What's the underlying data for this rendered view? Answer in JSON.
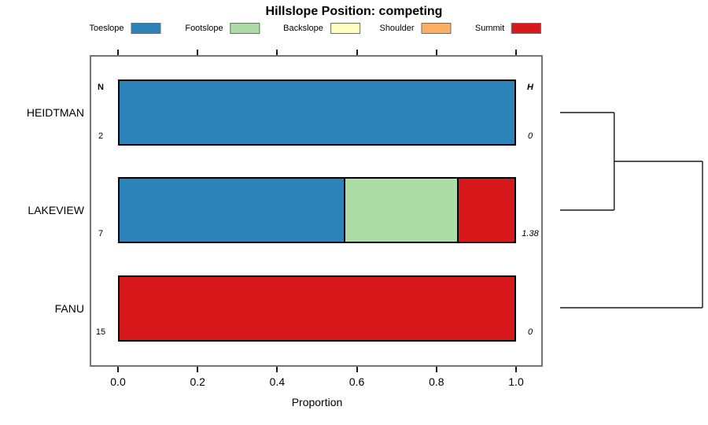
{
  "chart_data": {
    "type": "bar",
    "orientation": "horizontal-stacked",
    "title": "Hillslope Position: competing",
    "xlabel": "Proportion",
    "xlim": [
      0,
      1
    ],
    "xticks": [
      "0.0",
      "0.2",
      "0.4",
      "0.6",
      "0.8",
      "1.0"
    ],
    "grid": false,
    "legend": {
      "position": "top",
      "entries": [
        {
          "label": "Toeslope",
          "color": "#2b83ba"
        },
        {
          "label": "Footslope",
          "color": "#abdda4"
        },
        {
          "label": "Backslope",
          "color": "#ffffbf"
        },
        {
          "label": "Shoulder",
          "color": "#fdae61"
        },
        {
          "label": "Summit",
          "color": "#d7191c"
        }
      ]
    },
    "annotations": {
      "n_header": "N",
      "h_header": "H"
    },
    "rows": [
      {
        "label": "HEIDTMAN",
        "n": "2",
        "shannon_h": "0",
        "segments": [
          {
            "category": "Toeslope",
            "proportion": 1.0
          }
        ]
      },
      {
        "label": "LAKEVIEW",
        "n": "7",
        "shannon_h": "1.38",
        "segments": [
          {
            "category": "Toeslope",
            "proportion": 0.5714
          },
          {
            "category": "Footslope",
            "proportion": 0.2857
          },
          {
            "category": "Summit",
            "proportion": 0.1429
          }
        ]
      },
      {
        "label": "FANU",
        "n": "15",
        "shannon_h": "0",
        "segments": [
          {
            "category": "Summit",
            "proportion": 1.0
          }
        ]
      }
    ],
    "dendrogram": {
      "side": "right",
      "structure": "((HEIDTMAN,LAKEVIEW),FANU)",
      "merges": [
        {
          "members": [
            "HEIDTMAN",
            "LAKEVIEW"
          ],
          "relative_height": 0.38
        },
        {
          "members": [
            "HEIDTMAN+LAKEVIEW",
            "FANU"
          ],
          "relative_height": 1.0
        }
      ]
    }
  }
}
